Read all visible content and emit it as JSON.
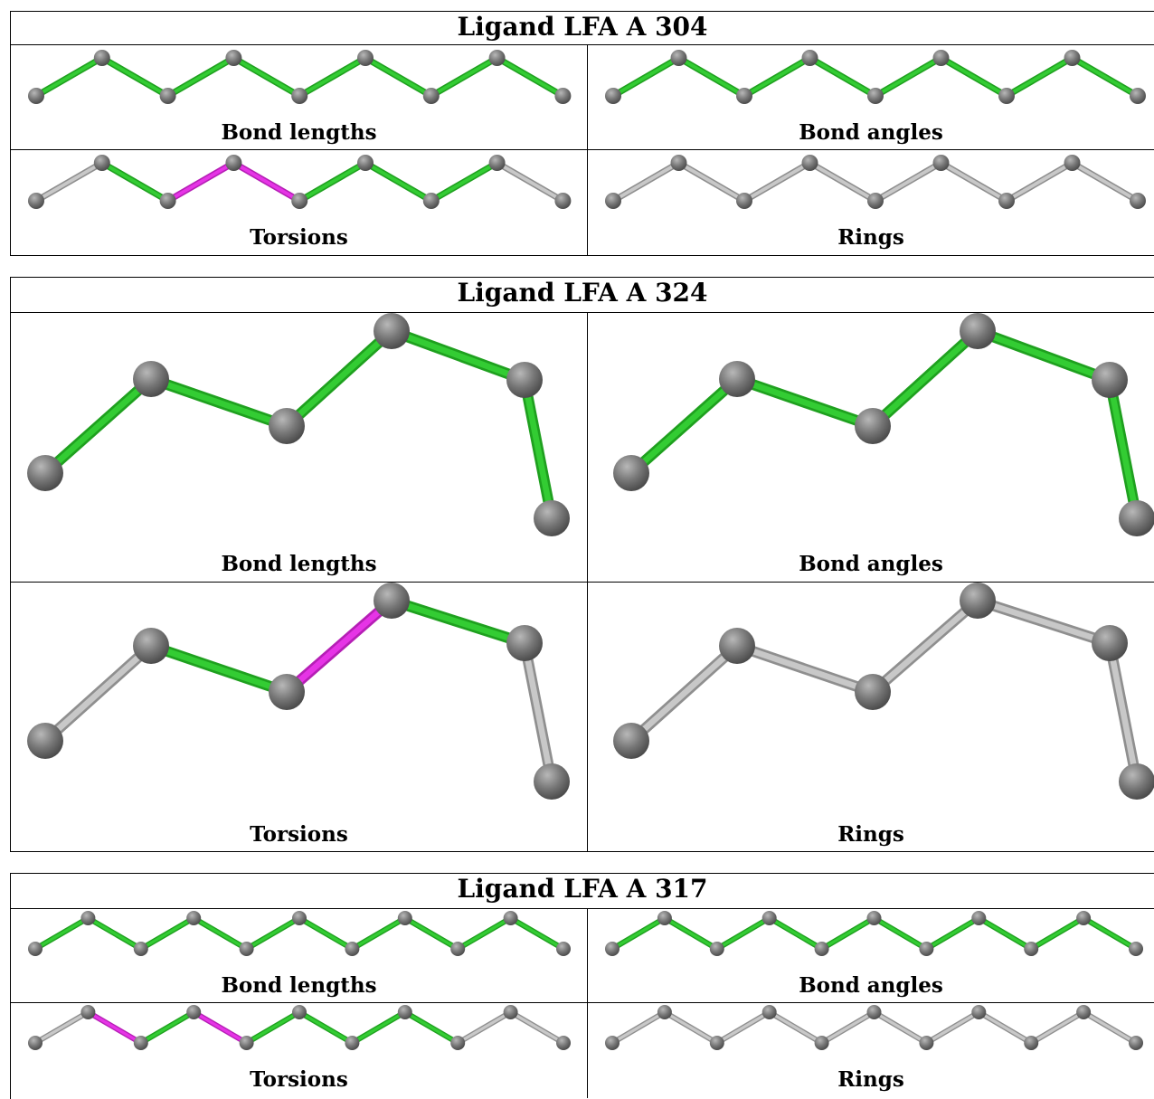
{
  "colors": {
    "ok": "#33cc33",
    "ok_dark": "#1fa01f",
    "flag": "#e634e6",
    "flag_dark": "#b51fb5",
    "neutral": "#c8c8c8",
    "neutral_dark": "#8f8f8f",
    "atom": "#777777",
    "atom_dark": "#4a4a4a",
    "atom_light": "#b8b8b8"
  },
  "ligands": [
    {
      "title": "Ligand LFA A 304",
      "panels": [
        {
          "label": "Bond lengths",
          "bonds": [
            "ok",
            "ok",
            "ok",
            "ok",
            "ok",
            "ok",
            "ok",
            "ok"
          ]
        },
        {
          "label": "Bond angles",
          "bonds": [
            "ok",
            "ok",
            "ok",
            "ok",
            "ok",
            "ok",
            "ok",
            "ok"
          ]
        },
        {
          "label": "Torsions",
          "bonds": [
            "neutral",
            "ok",
            "flag",
            "flag",
            "ok",
            "ok",
            "ok",
            "neutral"
          ]
        },
        {
          "label": "Rings",
          "bonds": [
            "neutral",
            "neutral",
            "neutral",
            "neutral",
            "neutral",
            "neutral",
            "neutral",
            "neutral"
          ]
        }
      ]
    },
    {
      "title": "Ligand LFA A 324",
      "panels": [
        {
          "label": "Bond lengths",
          "bonds": [
            "ok",
            "ok",
            "ok",
            "ok",
            "ok"
          ]
        },
        {
          "label": "Bond angles",
          "bonds": [
            "ok",
            "ok",
            "ok",
            "ok",
            "ok"
          ]
        },
        {
          "label": "Torsions",
          "bonds": [
            "neutral",
            "ok",
            "flag",
            "ok",
            "neutral"
          ]
        },
        {
          "label": "Rings",
          "bonds": [
            "neutral",
            "neutral",
            "neutral",
            "neutral",
            "neutral"
          ]
        }
      ]
    },
    {
      "title": "Ligand LFA A 317",
      "panels": [
        {
          "label": "Bond lengths",
          "bonds": [
            "ok",
            "ok",
            "ok",
            "ok",
            "ok",
            "ok",
            "ok",
            "ok",
            "ok",
            "ok"
          ]
        },
        {
          "label": "Bond angles",
          "bonds": [
            "ok",
            "ok",
            "ok",
            "ok",
            "ok",
            "ok",
            "ok",
            "ok",
            "ok",
            "ok"
          ]
        },
        {
          "label": "Torsions",
          "bonds": [
            "neutral",
            "flag",
            "ok",
            "flag",
            "ok",
            "ok",
            "ok",
            "ok",
            "neutral",
            "neutral"
          ]
        },
        {
          "label": "Rings",
          "bonds": [
            "neutral",
            "neutral",
            "neutral",
            "neutral",
            "neutral",
            "neutral",
            "neutral",
            "neutral",
            "neutral",
            "neutral"
          ]
        }
      ]
    }
  ]
}
